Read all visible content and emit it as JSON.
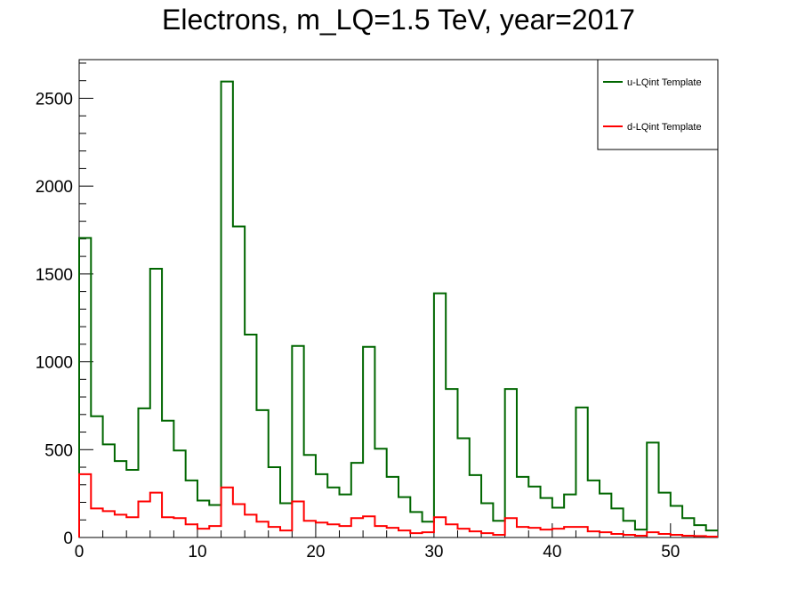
{
  "chart_data": {
    "type": "histogram",
    "title": "Electrons, m_LQ=1.5 TeV, year=2017",
    "xlabel": "",
    "ylabel": "",
    "xlim": [
      0,
      54
    ],
    "ylim": [
      0,
      2720
    ],
    "bin_edges_start": 0,
    "bin_width": 1,
    "x_ticks": [
      0,
      10,
      20,
      30,
      40,
      50
    ],
    "x_tick_labels": [
      "0",
      "10",
      "20",
      "30",
      "40",
      "50"
    ],
    "y_ticks": [
      0,
      500,
      1000,
      1500,
      2000,
      2500
    ],
    "y_tick_labels": [
      "0",
      "500",
      "1000",
      "1500",
      "2000",
      "2500"
    ],
    "legend_position": "top-right",
    "series": [
      {
        "name": "u-LQint Template",
        "color": "#006600",
        "values": [
          1705,
          690,
          530,
          435,
          385,
          735,
          1530,
          665,
          495,
          325,
          210,
          185,
          2595,
          1770,
          1155,
          725,
          400,
          195,
          1090,
          470,
          360,
          285,
          245,
          425,
          1085,
          505,
          345,
          230,
          145,
          90,
          1390,
          845,
          565,
          355,
          195,
          95,
          845,
          345,
          290,
          225,
          170,
          245,
          740,
          325,
          250,
          165,
          95,
          45,
          540,
          255,
          180,
          110,
          70,
          40
        ]
      },
      {
        "name": "d-LQint Template",
        "color": "#ff0000",
        "values": [
          360,
          165,
          150,
          130,
          115,
          205,
          255,
          115,
          110,
          75,
          50,
          65,
          285,
          190,
          130,
          90,
          60,
          40,
          205,
          95,
          85,
          75,
          65,
          110,
          120,
          65,
          55,
          40,
          25,
          30,
          115,
          75,
          50,
          35,
          25,
          15,
          110,
          60,
          55,
          45,
          50,
          60,
          60,
          35,
          30,
          20,
          15,
          10,
          30,
          20,
          15,
          10,
          8,
          5
        ]
      }
    ]
  }
}
